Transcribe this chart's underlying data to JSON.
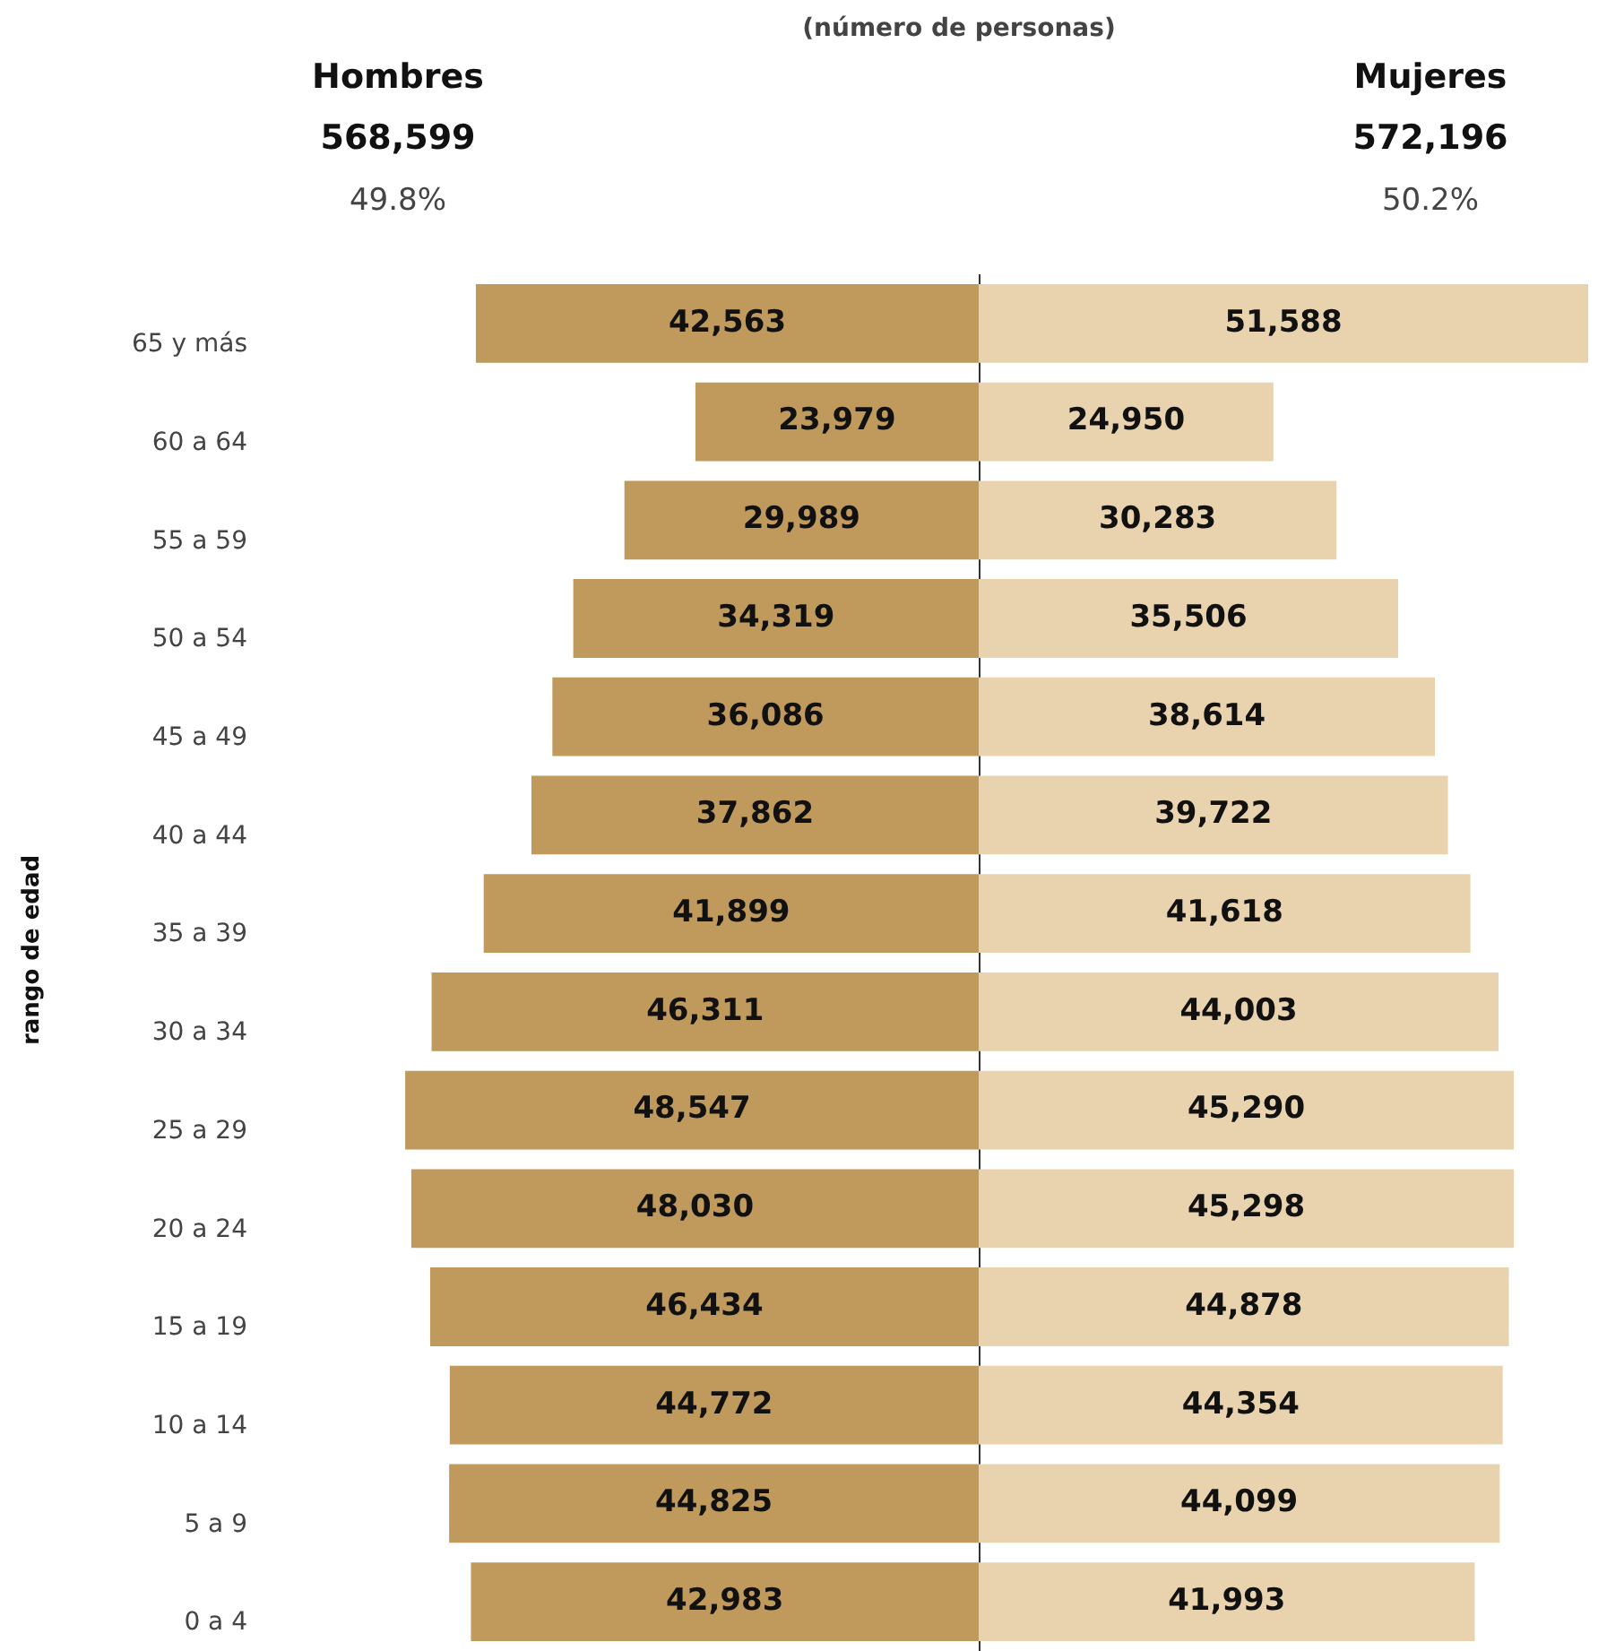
{
  "chart_data": [
    {
      "type": "bar",
      "orientation": "horizontal",
      "subtitle": "(número de personas)",
      "ylabel": "rango de edad",
      "tick_labels": "y",
      "annotations": [
        "568,599",
        "49.8%"
      ],
      "categories": [
        "65 y más",
        "60 a 64",
        "55 a 59",
        "50 a 54",
        "45 a 49",
        "40 a 44",
        "35 a 39",
        "30 a 34",
        "25 a 29",
        "20 a 24",
        "15 a 19",
        "10 a 14",
        "5 a 9",
        "0 a 4"
      ],
      "series": [
        {
          "name": "Hombres",
          "color": "#c09a5d",
          "values": [
            42563,
            23979,
            29989,
            34319,
            36086,
            37862,
            41899,
            46311,
            48547,
            48030,
            46434,
            44772,
            44825,
            42983
          ],
          "value_labels": [
            "42,563",
            "23,979",
            "29,989",
            "34,319",
            "36,086",
            "37,862",
            "41,899",
            "46,311",
            "48,547",
            "48,030",
            "46,434",
            "44,772",
            "44,825",
            "42,983"
          ]
        }
      ],
      "legend": false
    },
    {
      "type": "bar",
      "orientation": "horizontal",
      "tick_labels": false,
      "annotations": [
        "572,196",
        "50.2%"
      ],
      "categories": [
        null,
        null,
        null,
        null,
        null,
        null,
        null,
        null,
        null,
        null,
        null,
        null,
        null,
        null
      ],
      "series": [
        {
          "name": "Mujeres",
          "color": "#e8d3ae",
          "values": [
            51588,
            24950,
            30283,
            35506,
            38614,
            39722,
            41618,
            44003,
            45290,
            45298,
            44878,
            44354,
            44099,
            41993
          ],
          "value_labels": [
            "51,588",
            "24,950",
            "30,283",
            "35,506",
            "38,614",
            "39,722",
            "41,618",
            "44,003",
            "45,290",
            "45,298",
            "44,878",
            "44,354",
            "44,099",
            "41,993"
          ]
        }
      ],
      "legend": false
    }
  ]
}
